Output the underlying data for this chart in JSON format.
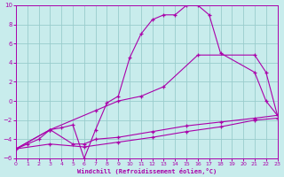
{
  "xlabel": "Windchill (Refroidissement éolien,°C)",
  "xlim": [
    0,
    23
  ],
  "ylim": [
    -6,
    10
  ],
  "xticks": [
    0,
    1,
    2,
    3,
    4,
    5,
    6,
    7,
    8,
    9,
    10,
    11,
    12,
    13,
    14,
    15,
    16,
    17,
    18,
    19,
    20,
    21,
    22,
    23
  ],
  "yticks": [
    -6,
    -4,
    -2,
    0,
    2,
    4,
    6,
    8,
    10
  ],
  "bg_color": "#c8ecec",
  "line_color": "#aa00aa",
  "grid_color": "#99cccc",
  "line1_x": [
    0,
    1,
    2,
    3,
    4,
    5,
    6,
    7,
    8,
    9,
    10,
    11,
    12,
    13,
    14,
    15,
    16,
    17,
    18,
    21,
    22,
    23
  ],
  "line1_y": [
    -5.0,
    -4.5,
    -4.0,
    -3.0,
    -2.8,
    -2.5,
    -6.0,
    -3.0,
    -0.2,
    0.5,
    4.5,
    7.0,
    8.5,
    9.0,
    9.0,
    10.0,
    10.0,
    9.0,
    5.0,
    3.0,
    0.0,
    -1.5
  ],
  "line2_x": [
    0,
    3,
    7,
    9,
    11,
    13,
    16,
    21,
    22,
    23
  ],
  "line2_y": [
    -5.0,
    -3.0,
    -1.0,
    0.0,
    0.5,
    1.5,
    4.8,
    4.8,
    3.0,
    -1.5
  ],
  "line3_x": [
    0,
    3,
    5,
    6,
    7,
    9,
    12,
    15,
    18,
    21,
    23
  ],
  "line3_y": [
    -5.0,
    -3.0,
    -4.5,
    -4.5,
    -4.0,
    -3.8,
    -3.2,
    -2.6,
    -2.2,
    -1.8,
    -1.5
  ],
  "line4_x": [
    0,
    3,
    6,
    9,
    12,
    15,
    18,
    21,
    23
  ],
  "line4_y": [
    -5.0,
    -4.5,
    -4.8,
    -4.3,
    -3.8,
    -3.2,
    -2.7,
    -2.0,
    -1.8
  ]
}
